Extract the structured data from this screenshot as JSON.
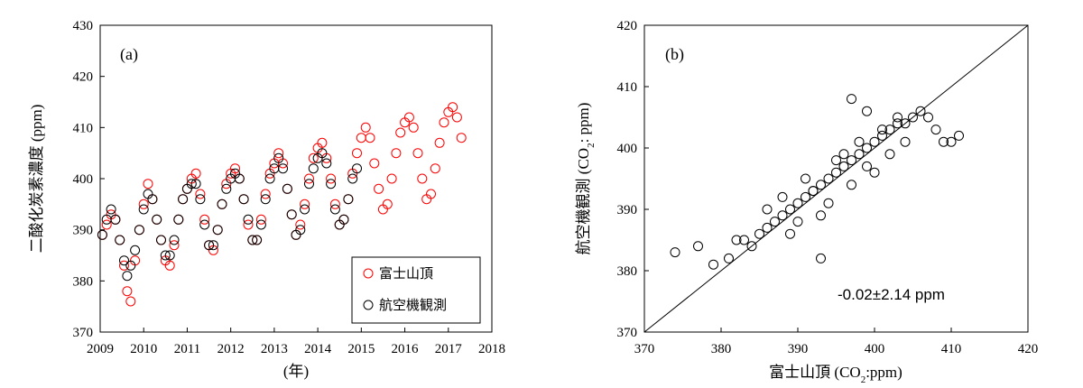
{
  "chart_data": [
    {
      "type": "scatter",
      "panel_label": "(a)",
      "ylabel": "二酸化炭素濃度 (ppm)",
      "xlabel": "(年)",
      "xlim": [
        2009,
        2018
      ],
      "ylim": [
        370,
        430
      ],
      "xticks": [
        "2009",
        "2010",
        "2011",
        "2012",
        "2013",
        "2014",
        "2015",
        "2016",
        "2017",
        "2018"
      ],
      "yticks": [
        "370",
        "380",
        "390",
        "400",
        "410",
        "420",
        "430"
      ],
      "legend_position": "bottom-right",
      "series": [
        {
          "name": "富士山頂",
          "color": "#ff0000",
          "marker": "open-circle",
          "x": [
            2009.05,
            2009.15,
            2009.25,
            2009.35,
            2009.45,
            2009.55,
            2009.62,
            2009.7,
            2009.8,
            2009.9,
            2010.0,
            2010.1,
            2010.2,
            2010.3,
            2010.4,
            2010.5,
            2010.6,
            2010.7,
            2010.8,
            2010.9,
            2011.0,
            2011.1,
            2011.2,
            2011.3,
            2011.4,
            2011.5,
            2011.6,
            2011.7,
            2011.8,
            2011.9,
            2012.0,
            2012.1,
            2012.2,
            2012.3,
            2012.4,
            2012.5,
            2012.6,
            2012.7,
            2012.8,
            2012.9,
            2013.0,
            2013.1,
            2013.2,
            2013.3,
            2013.4,
            2013.5,
            2013.6,
            2013.7,
            2013.8,
            2013.9,
            2014.0,
            2014.1,
            2014.2,
            2014.3,
            2014.4,
            2014.5,
            2014.6,
            2014.7,
            2014.8,
            2014.9,
            2015.0,
            2015.1,
            2015.2,
            2015.3,
            2015.4,
            2015.5,
            2015.6,
            2015.7,
            2015.8,
            2015.9,
            2016.0,
            2016.1,
            2016.2,
            2016.3,
            2016.4,
            2016.5,
            2016.6,
            2016.7,
            2016.8,
            2016.9,
            2017.0,
            2017.1,
            2017.2,
            2017.3
          ],
          "y": [
            389,
            391,
            393,
            392,
            388,
            383,
            378,
            376,
            384,
            390,
            395,
            399,
            396,
            392,
            388,
            384,
            383,
            387,
            392,
            396,
            398,
            400,
            401,
            397,
            392,
            387,
            386,
            390,
            395,
            399,
            401,
            402,
            400,
            396,
            391,
            388,
            388,
            392,
            397,
            401,
            403,
            405,
            403,
            398,
            393,
            389,
            391,
            395,
            400,
            404,
            406,
            407,
            404,
            400,
            395,
            391,
            392,
            396,
            401,
            405,
            408,
            410,
            408,
            403,
            398,
            394,
            395,
            400,
            405,
            409,
            411,
            412,
            410,
            405,
            400,
            396,
            397,
            402,
            407,
            411,
            413,
            414,
            412,
            408
          ]
        },
        {
          "name": "航空機観測",
          "color": "#000000",
          "marker": "open-circle",
          "x": [
            2009.05,
            2009.15,
            2009.25,
            2009.35,
            2009.45,
            2009.55,
            2009.62,
            2009.7,
            2009.8,
            2009.9,
            2010.0,
            2010.1,
            2010.2,
            2010.3,
            2010.4,
            2010.5,
            2010.6,
            2010.7,
            2010.8,
            2010.9,
            2011.0,
            2011.1,
            2011.2,
            2011.3,
            2011.4,
            2011.5,
            2011.6,
            2011.7,
            2011.8,
            2011.9,
            2012.0,
            2012.1,
            2012.2,
            2012.3,
            2012.4,
            2012.5,
            2012.6,
            2012.7,
            2012.8,
            2012.9,
            2013.0,
            2013.1,
            2013.2,
            2013.3,
            2013.4,
            2013.5,
            2013.6,
            2013.7,
            2013.8,
            2013.9,
            2014.0,
            2014.1,
            2014.2,
            2014.3,
            2014.4,
            2014.5,
            2014.6,
            2014.7,
            2014.8,
            2014.9
          ],
          "y": [
            389,
            392,
            394,
            392,
            388,
            384,
            381,
            383,
            386,
            390,
            394,
            397,
            396,
            392,
            388,
            385,
            385,
            388,
            392,
            396,
            398,
            399,
            399,
            396,
            391,
            387,
            387,
            390,
            395,
            398,
            400,
            401,
            400,
            396,
            392,
            388,
            388,
            391,
            396,
            400,
            402,
            404,
            402,
            398,
            393,
            389,
            390,
            394,
            399,
            402,
            404,
            405,
            403,
            399,
            394,
            391,
            392,
            396,
            400,
            402
          ]
        }
      ]
    },
    {
      "type": "scatter",
      "panel_label": "(b)",
      "xlabel": "富士山頂 (CO2:ppm)",
      "ylabel": "航空機観測 (CO2: ppm)",
      "xlim": [
        370,
        420
      ],
      "ylim": [
        370,
        420
      ],
      "xticks": [
        "370",
        "380",
        "390",
        "400",
        "410",
        "420"
      ],
      "yticks": [
        "370",
        "380",
        "390",
        "400",
        "410",
        "420"
      ],
      "annotation": "-0.02±2.14 ppm",
      "reference_line": "1:1",
      "series": [
        {
          "color": "#000000",
          "marker": "open-circle",
          "x": [
            374,
            377,
            379,
            381,
            382,
            383,
            384,
            385,
            386,
            387,
            388,
            389,
            390,
            391,
            392,
            393,
            394,
            395,
            396,
            397,
            398,
            399,
            400,
            401,
            402,
            403,
            404,
            405,
            406,
            407,
            408,
            409,
            410,
            411,
            386,
            388,
            390,
            392,
            394,
            396,
            398,
            400,
            402,
            404,
            389,
            391,
            393,
            395,
            397,
            399,
            401,
            403,
            393,
            397,
            399
          ],
          "y": [
            383,
            384,
            381,
            382,
            385,
            385,
            384,
            386,
            387,
            388,
            389,
            390,
            391,
            392,
            393,
            394,
            395,
            396,
            397,
            398,
            399,
            400,
            401,
            402,
            403,
            404,
            404,
            405,
            406,
            405,
            403,
            401,
            401,
            402,
            390,
            392,
            388,
            393,
            391,
            399,
            401,
            396,
            399,
            401,
            386,
            395,
            389,
            398,
            394,
            397,
            403,
            405,
            382,
            408,
            406
          ]
        }
      ]
    }
  ]
}
